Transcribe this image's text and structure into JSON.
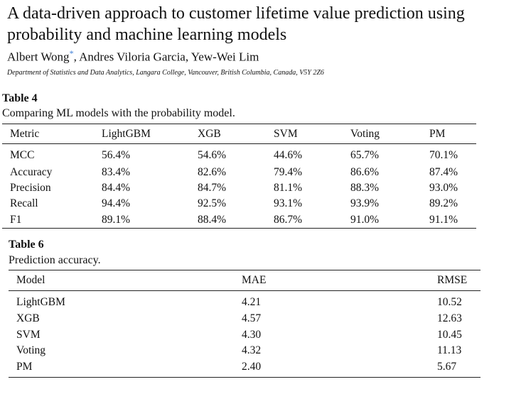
{
  "paper": {
    "title": "A data-driven approach to customer lifetime value prediction using probability and machine learning models",
    "authors_a": "Albert Wong",
    "author_mark": "*",
    "authors_b": ", Andres Viloria Garcia, Yew-Wei Lim",
    "affiliation": "Department of Statistics and Data Analytics, Langara College, Vancouver, British Columbia, Canada, V5Y 2Z6"
  },
  "table4": {
    "label": "Table 4",
    "caption": "Comparing ML models with the probability model.",
    "headers": [
      "Metric",
      "LightGBM",
      "XGB",
      "SVM",
      "Voting",
      "PM"
    ],
    "rows": [
      [
        "MCC",
        "56.4%",
        "54.6%",
        "44.6%",
        "65.7%",
        "70.1%"
      ],
      [
        "Accuracy",
        "83.4%",
        "82.6%",
        "79.4%",
        "86.6%",
        "87.4%"
      ],
      [
        "Precision",
        "84.4%",
        "84.7%",
        "81.1%",
        "88.3%",
        "93.0%"
      ],
      [
        "Recall",
        "94.4%",
        "92.5%",
        "93.1%",
        "93.9%",
        "89.2%"
      ],
      [
        "F1",
        "89.1%",
        "88.4%",
        "86.7%",
        "91.0%",
        "91.1%"
      ]
    ]
  },
  "table6": {
    "label": "Table 6",
    "caption": "Prediction accuracy.",
    "headers": [
      "Model",
      "MAE",
      "RMSE"
    ],
    "rows": [
      [
        "LightGBM",
        "4.21",
        "10.52"
      ],
      [
        "XGB",
        "4.57",
        "12.63"
      ],
      [
        "SVM",
        "4.30",
        "10.45"
      ],
      [
        "Voting",
        "4.32",
        "11.13"
      ],
      [
        "PM",
        "2.40",
        "5.67"
      ]
    ]
  }
}
